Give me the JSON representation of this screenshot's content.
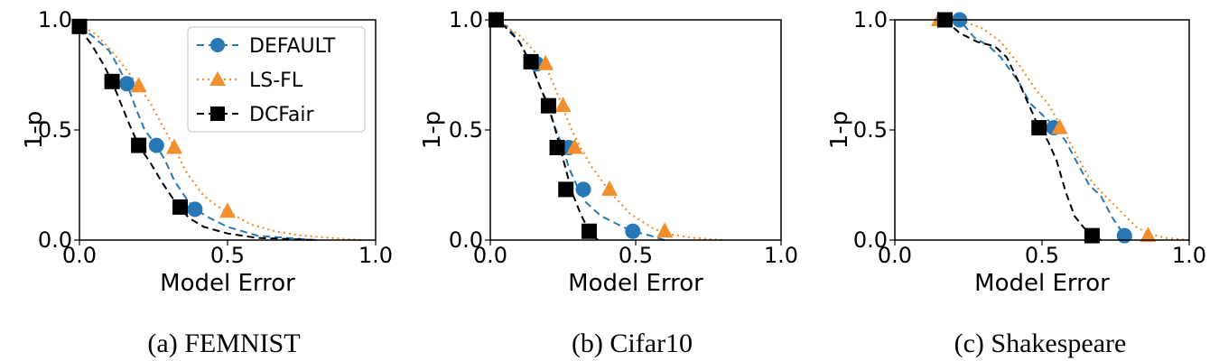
{
  "colors": {
    "DEFAULT": "#2878b5",
    "LS-FL": "#f28e2b",
    "DCFair": "#000000"
  },
  "legend": {
    "placement": "top-right (panel a)",
    "entries": [
      {
        "name": "DEFAULT",
        "marker": "circle",
        "line": "dashed"
      },
      {
        "name": "LS-FL",
        "marker": "triangle",
        "line": "dotted"
      },
      {
        "name": "DCFair",
        "marker": "square",
        "line": "dashed"
      }
    ]
  },
  "chart_data": [
    {
      "type": "line",
      "caption": "(a) FEMNIST",
      "xlabel": "Model Error",
      "ylabel": "1-p",
      "xlim": [
        0,
        1
      ],
      "ylim": [
        0,
        1
      ],
      "xticks": [
        "0.0",
        "0.5",
        "1.0"
      ],
      "yticks": [
        "0.0",
        "0.5",
        "1.0"
      ],
      "series": [
        {
          "name": "DEFAULT",
          "x": [
            0.0,
            0.05,
            0.1,
            0.13,
            0.16,
            0.19,
            0.22,
            0.26,
            0.29,
            0.32,
            0.36,
            0.39,
            0.44,
            0.5,
            0.55,
            0.6,
            0.7,
            0.8
          ],
          "y": [
            0.97,
            0.92,
            0.86,
            0.79,
            0.71,
            0.6,
            0.5,
            0.43,
            0.36,
            0.27,
            0.19,
            0.14,
            0.1,
            0.06,
            0.04,
            0.02,
            0.01,
            0.0
          ],
          "markers_x": [
            0.0,
            0.16,
            0.26,
            0.39
          ],
          "markers_y": [
            0.97,
            0.71,
            0.43,
            0.14
          ]
        },
        {
          "name": "LS-FL",
          "x": [
            0.0,
            0.06,
            0.12,
            0.16,
            0.2,
            0.24,
            0.28,
            0.32,
            0.36,
            0.42,
            0.47,
            0.5,
            0.58,
            0.66,
            0.75,
            0.85,
            0.95
          ],
          "y": [
            0.98,
            0.93,
            0.84,
            0.77,
            0.7,
            0.62,
            0.52,
            0.42,
            0.31,
            0.2,
            0.15,
            0.13,
            0.07,
            0.04,
            0.02,
            0.01,
            0.0
          ],
          "markers_x": [
            0.2,
            0.32,
            0.5
          ],
          "markers_y": [
            0.7,
            0.42,
            0.13
          ]
        },
        {
          "name": "DCFair",
          "x": [
            0.0,
            0.04,
            0.08,
            0.11,
            0.14,
            0.17,
            0.2,
            0.24,
            0.28,
            0.33,
            0.37,
            0.42,
            0.5,
            0.6,
            0.7,
            0.8
          ],
          "y": [
            0.96,
            0.89,
            0.8,
            0.72,
            0.62,
            0.52,
            0.43,
            0.35,
            0.26,
            0.16,
            0.1,
            0.06,
            0.03,
            0.01,
            0.005,
            0.0
          ],
          "markers_x": [
            0.0,
            0.11,
            0.2,
            0.34
          ],
          "markers_y": [
            0.97,
            0.72,
            0.43,
            0.15
          ]
        }
      ]
    },
    {
      "type": "line",
      "caption": "(b) Cifar10",
      "xlabel": "Model Error",
      "ylabel": "1-p",
      "xlim": [
        0,
        1
      ],
      "ylim": [
        0,
        1
      ],
      "xticks": [
        "0.0",
        "0.5",
        "1.0"
      ],
      "yticks": [
        "0.0",
        "0.5",
        "1.0"
      ],
      "series": [
        {
          "name": "DEFAULT",
          "x": [
            0.0,
            0.06,
            0.1,
            0.14,
            0.17,
            0.2,
            0.22,
            0.25,
            0.27,
            0.3,
            0.33,
            0.38,
            0.44,
            0.49,
            0.55,
            0.6
          ],
          "y": [
            1.0,
            0.97,
            0.9,
            0.8,
            0.7,
            0.6,
            0.52,
            0.42,
            0.33,
            0.24,
            0.17,
            0.11,
            0.07,
            0.04,
            0.02,
            0.0
          ],
          "markers_x": [
            0.16,
            0.27,
            0.32,
            0.49
          ],
          "markers_y": [
            0.8,
            0.42,
            0.23,
            0.04
          ]
        },
        {
          "name": "LS-FL",
          "x": [
            0.0,
            0.04,
            0.1,
            0.15,
            0.19,
            0.22,
            0.25,
            0.28,
            0.31,
            0.35,
            0.41,
            0.48,
            0.55,
            0.6,
            0.7,
            0.8
          ],
          "y": [
            1.0,
            0.98,
            0.93,
            0.86,
            0.79,
            0.7,
            0.6,
            0.5,
            0.42,
            0.33,
            0.22,
            0.12,
            0.06,
            0.03,
            0.01,
            0.0
          ],
          "markers_x": [
            0.02,
            0.19,
            0.25,
            0.29,
            0.41,
            0.6
          ],
          "markers_y": [
            1.0,
            0.8,
            0.61,
            0.42,
            0.23,
            0.04
          ]
        },
        {
          "name": "DCFair",
          "x": [
            0.0,
            0.05,
            0.1,
            0.14,
            0.17,
            0.2,
            0.22,
            0.24,
            0.26,
            0.28,
            0.31,
            0.34,
            0.37
          ],
          "y": [
            1.0,
            0.97,
            0.9,
            0.8,
            0.7,
            0.61,
            0.52,
            0.42,
            0.32,
            0.22,
            0.12,
            0.04,
            0.0
          ],
          "markers_x": [
            0.02,
            0.14,
            0.2,
            0.23,
            0.26,
            0.34
          ],
          "markers_y": [
            1.0,
            0.81,
            0.61,
            0.42,
            0.23,
            0.04
          ]
        }
      ]
    },
    {
      "type": "line",
      "caption": "(c) Shakespeare",
      "xlabel": "Model Error",
      "ylabel": "1-p",
      "xlim": [
        0,
        1
      ],
      "ylim": [
        0,
        1
      ],
      "xticks": [
        "0.0",
        "0.5",
        "1.0"
      ],
      "yticks": [
        "0.0",
        "0.5",
        "1.0"
      ],
      "series": [
        {
          "name": "DEFAULT",
          "x": [
            0.16,
            0.22,
            0.27,
            0.32,
            0.36,
            0.42,
            0.46,
            0.5,
            0.54,
            0.58,
            0.62,
            0.66,
            0.7,
            0.74,
            0.78,
            0.82
          ],
          "y": [
            1.0,
            1.0,
            0.92,
            0.88,
            0.83,
            0.72,
            0.62,
            0.57,
            0.52,
            0.45,
            0.35,
            0.25,
            0.2,
            0.1,
            0.02,
            0.0
          ],
          "markers_x": [
            0.22,
            0.54,
            0.78
          ],
          "markers_y": [
            1.0,
            0.51,
            0.02
          ]
        },
        {
          "name": "LS-FL",
          "x": [
            0.15,
            0.22,
            0.3,
            0.36,
            0.42,
            0.48,
            0.52,
            0.55,
            0.58,
            0.62,
            0.66,
            0.7,
            0.76,
            0.82,
            0.86,
            0.92,
            1.0
          ],
          "y": [
            1.0,
            1.0,
            0.96,
            0.9,
            0.8,
            0.68,
            0.62,
            0.55,
            0.48,
            0.38,
            0.28,
            0.22,
            0.14,
            0.06,
            0.03,
            0.01,
            0.0
          ],
          "markers_x": [
            0.15,
            0.56,
            0.86
          ],
          "markers_y": [
            1.0,
            0.51,
            0.02
          ]
        },
        {
          "name": "DCFair",
          "x": [
            0.17,
            0.22,
            0.28,
            0.34,
            0.38,
            0.42,
            0.46,
            0.49,
            0.52,
            0.55,
            0.58,
            0.61,
            0.64,
            0.67,
            0.7
          ],
          "y": [
            1.0,
            0.94,
            0.9,
            0.88,
            0.83,
            0.72,
            0.6,
            0.51,
            0.45,
            0.36,
            0.22,
            0.11,
            0.06,
            0.02,
            0.0
          ],
          "markers_x": [
            0.17,
            0.49,
            0.67
          ],
          "markers_y": [
            1.0,
            0.51,
            0.02
          ]
        }
      ]
    }
  ]
}
